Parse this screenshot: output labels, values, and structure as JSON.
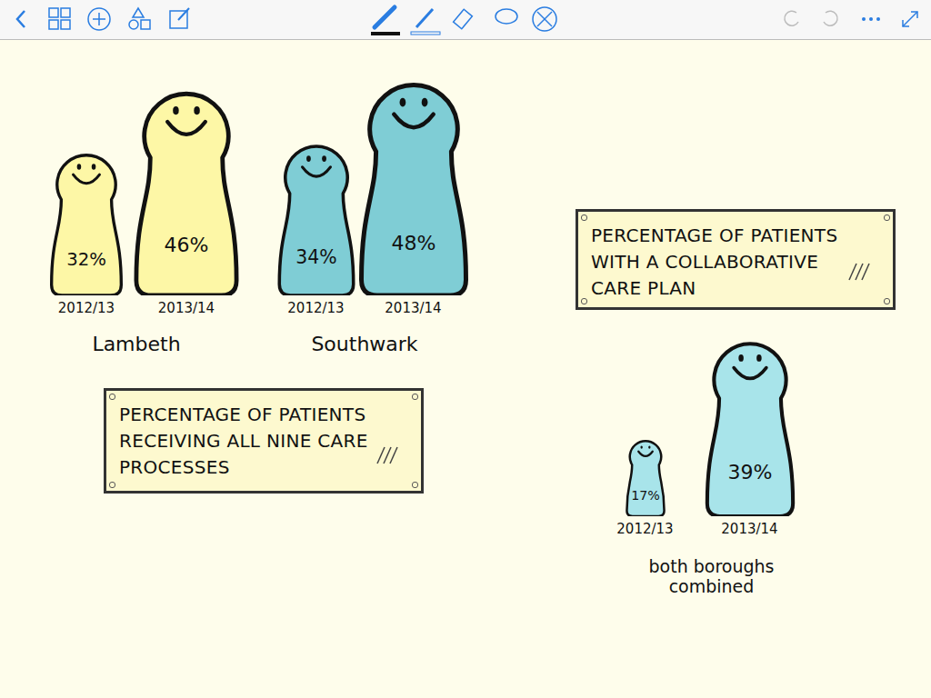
{
  "chart_data": [
    {
      "type": "bar",
      "title": "PERCENTAGE OF PATIENTS RECEIVING ALL NINE CARE PROCESSES",
      "categories": [
        "2012/13",
        "2013/14"
      ],
      "series": [
        {
          "name": "Lambeth",
          "color": "#fdf7a6",
          "values": [
            32,
            46
          ],
          "value_labels": [
            "32%",
            "46%"
          ]
        },
        {
          "name": "Southwark",
          "color": "#7fcdd5",
          "values": [
            34,
            48
          ],
          "value_labels": [
            "34%",
            "48%"
          ]
        }
      ],
      "data_labels": true,
      "tick_labels": "x"
    },
    {
      "type": "bar",
      "title": "PERCENTAGE OF PATIENTS WITH A COLLABORATIVE CARE PLAN",
      "categories": [
        "2012/13",
        "2013/14"
      ],
      "values": [
        17,
        39
      ],
      "value_labels": [
        "17%",
        "39%"
      ],
      "color": "#a8e4ea",
      "xlabel": "both boroughs combined",
      "data_labels": true,
      "tick_labels": "x"
    }
  ]
}
